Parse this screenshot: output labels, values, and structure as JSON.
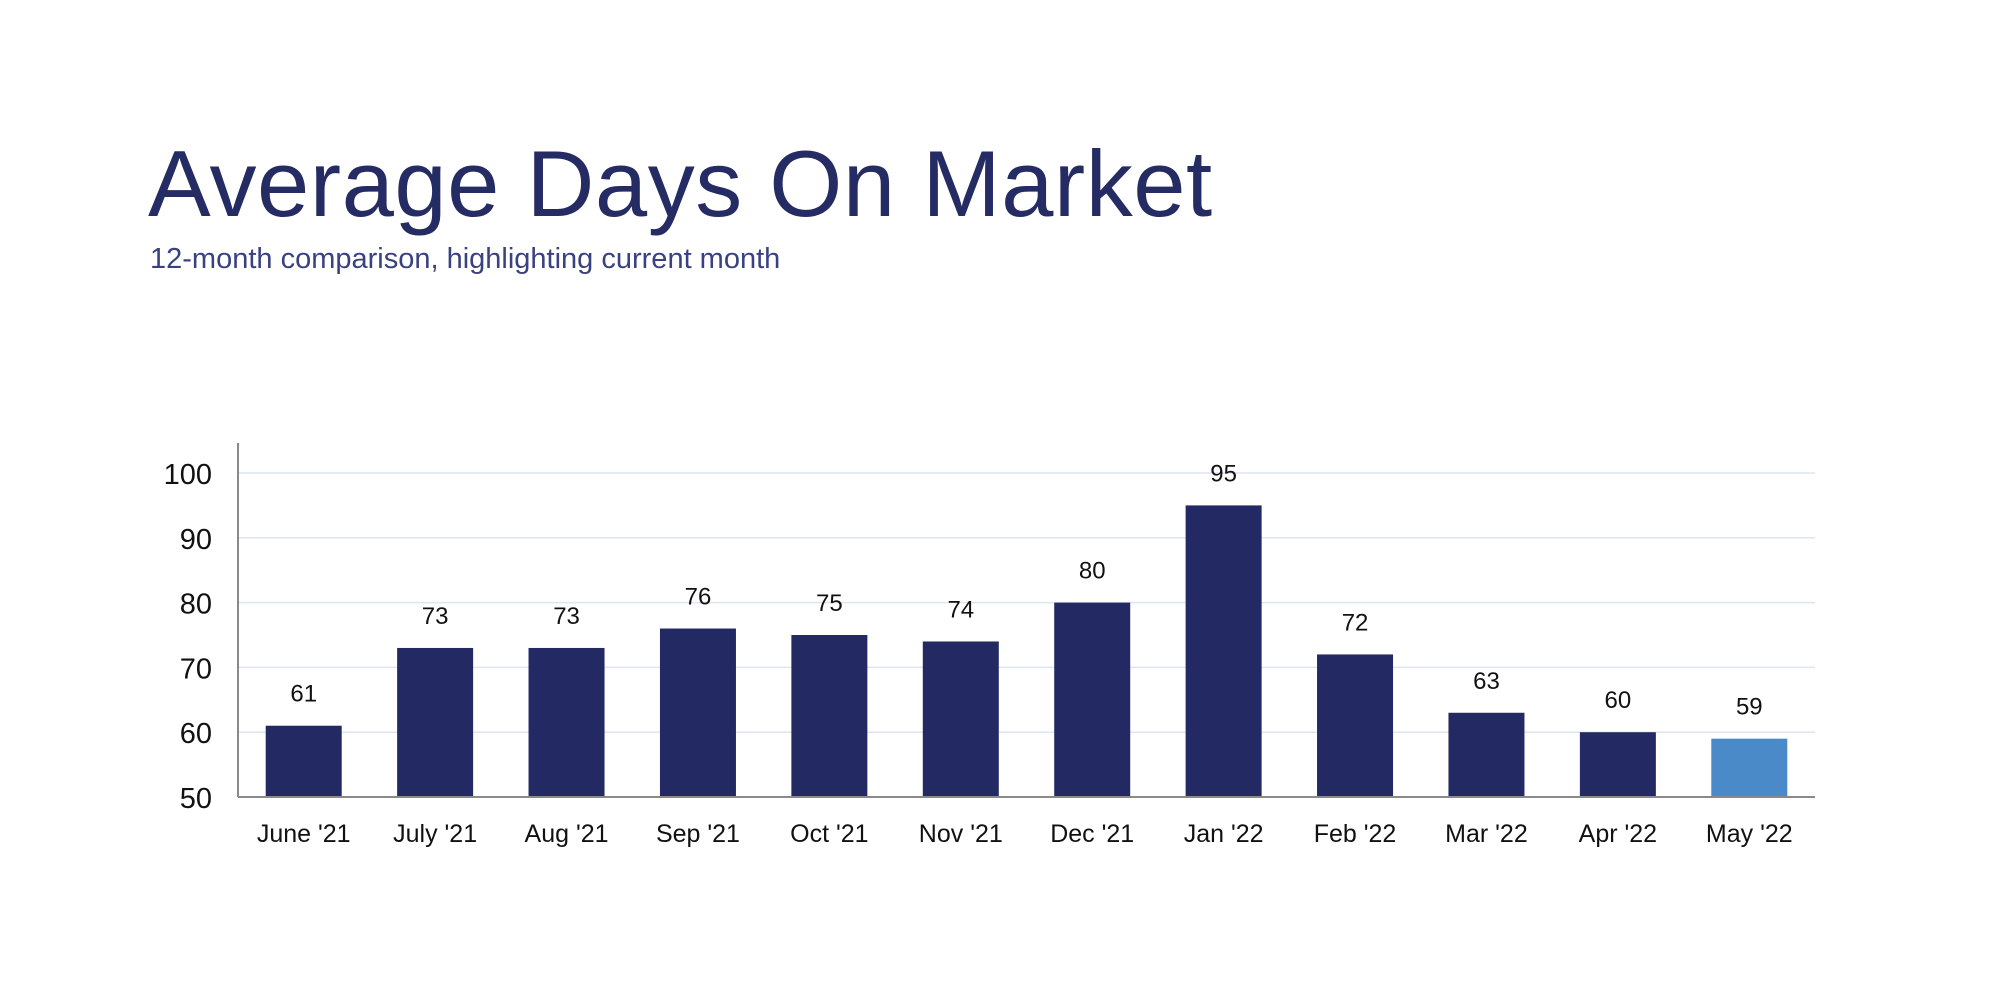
{
  "title": "Average Days On Market",
  "subtitle": "12-month comparison, highlighting current month",
  "colors": {
    "bar": "#232a63",
    "highlight": "#4a8ac9",
    "title": "#252b63",
    "grid": "#dde6f0",
    "axis": "#8a8a8a"
  },
  "chart_data": {
    "type": "bar",
    "title": "Average Days On Market",
    "subtitle": "12-month comparison, highlighting current month",
    "categories": [
      "June '21",
      "July '21",
      "Aug '21",
      "Sep '21",
      "Oct '21",
      "Nov '21",
      "Dec '21",
      "Jan '22",
      "Feb '22",
      "Mar '22",
      "Apr '22",
      "May '22"
    ],
    "values": [
      61,
      73,
      73,
      76,
      75,
      74,
      80,
      95,
      72,
      63,
      60,
      59
    ],
    "highlight_index": 11,
    "ylim": [
      50,
      105
    ],
    "yticks": [
      50,
      60,
      70,
      80,
      90,
      100
    ],
    "grid": true,
    "data_labels": true,
    "xlabel": "",
    "ylabel": ""
  }
}
